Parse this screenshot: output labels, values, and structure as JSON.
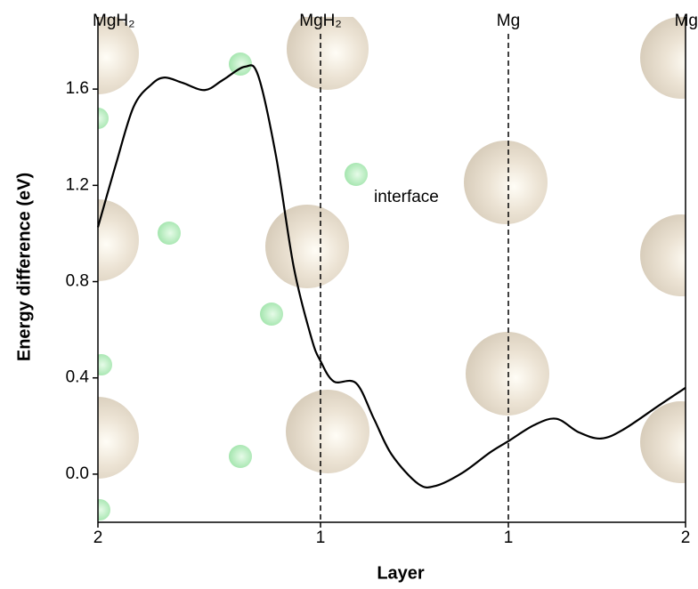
{
  "chart_data": {
    "type": "line",
    "x_label": "Layer",
    "y_label": "Energy difference (eV)",
    "top_labels": [
      "MgH₂",
      "MgH₂",
      "Mg",
      "Mg"
    ],
    "top_label_positions": [
      0,
      2.5,
      4.61,
      6.6
    ],
    "dashed_lines": [
      2.5,
      4.61
    ],
    "annotation": {
      "text": "interface",
      "x": 3.1,
      "y": 1.15
    },
    "xlim": [
      0,
      6.6
    ],
    "xticks": [
      {
        "value": 0,
        "label": "2"
      },
      {
        "value": 2.5,
        "label": "1"
      },
      {
        "value": 4.61,
        "label": "1"
      },
      {
        "value": 6.6,
        "label": "2"
      }
    ],
    "ylim": [
      -0.2,
      1.9
    ],
    "yticks": [
      {
        "value": 0,
        "label": "0.0"
      },
      0.4,
      0.8,
      1.2,
      1.6
    ],
    "series": [
      {
        "color": "#000000",
        "x": [
          0,
          0.2,
          0.4,
          0.6,
          0.75,
          0.95,
          1.2,
          1.4,
          1.65,
          1.8,
          2.0,
          2.2,
          2.4,
          2.5,
          2.65,
          2.9,
          3.1,
          3.3,
          3.6,
          3.8,
          4.1,
          4.4,
          4.61,
          4.9,
          5.15,
          5.4,
          5.65,
          5.9,
          6.3,
          6.6
        ],
        "values": [
          1.026,
          1.285,
          1.526,
          1.619,
          1.648,
          1.626,
          1.596,
          1.637,
          1.693,
          1.656,
          1.322,
          0.859,
          0.563,
          0.47,
          0.385,
          0.378,
          0.23,
          0.081,
          -0.041,
          -0.048,
          0.007,
          0.089,
          0.137,
          0.204,
          0.23,
          0.174,
          0.148,
          0.185,
          0.285,
          0.359
        ]
      }
    ]
  }
}
